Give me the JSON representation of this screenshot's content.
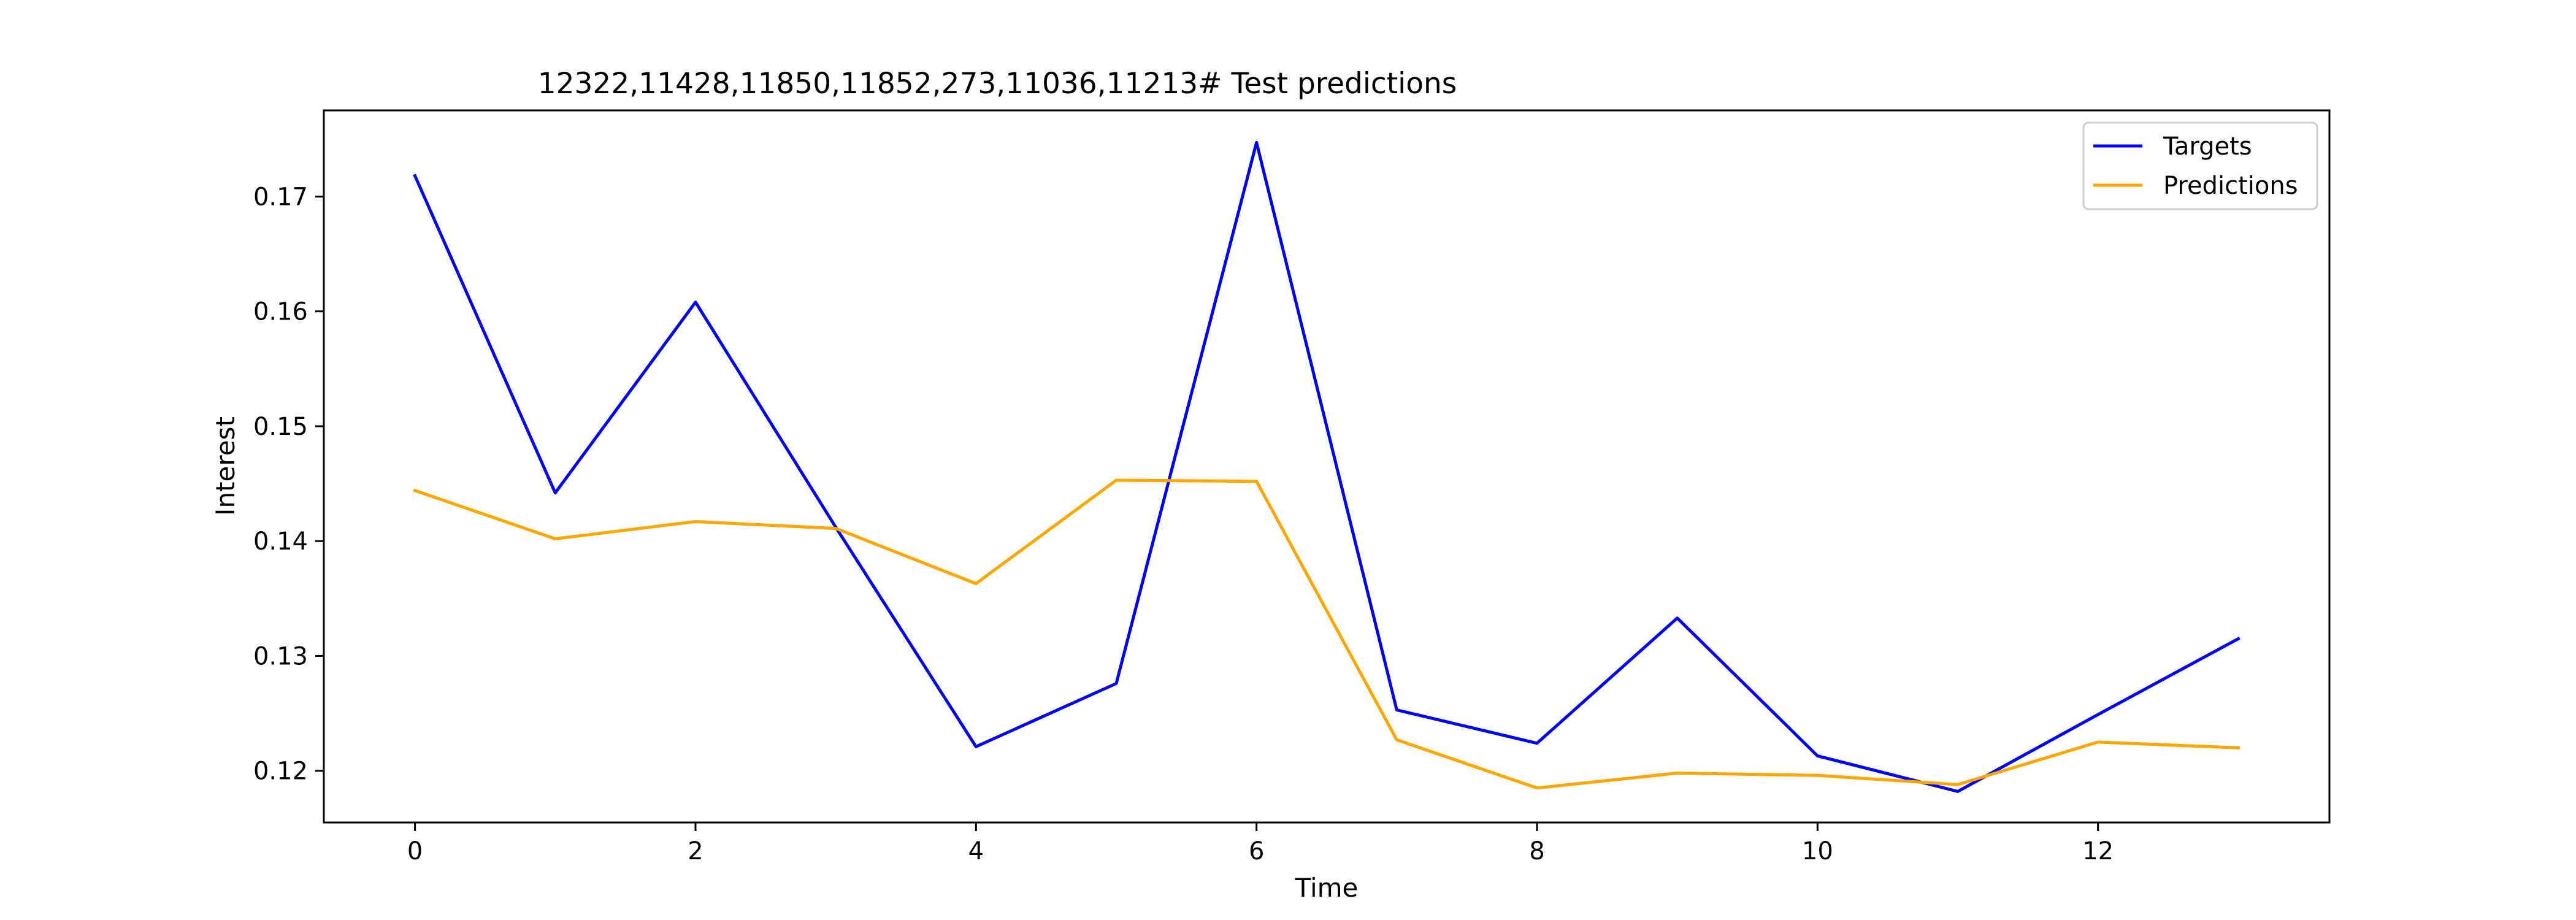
{
  "chart_data": {
    "type": "line",
    "title": "12322,11428,11850,11852,273,11036,11213# Test predictions",
    "xlabel": "Time",
    "ylabel": "Interest",
    "x": [
      0,
      1,
      2,
      3,
      4,
      5,
      6,
      7,
      8,
      9,
      10,
      11,
      12,
      13
    ],
    "xlim": [
      -0.65,
      13.65
    ],
    "ylim": [
      0.1155,
      0.1775
    ],
    "xticks": [
      0,
      2,
      4,
      6,
      8,
      10,
      12
    ],
    "xtick_labels": [
      "0",
      "2",
      "4",
      "6",
      "8",
      "10",
      "12"
    ],
    "yticks": [
      0.12,
      0.13,
      0.14,
      0.15,
      0.16,
      0.17
    ],
    "ytick_labels": [
      "0.12",
      "0.13",
      "0.14",
      "0.15",
      "0.16",
      "0.17"
    ],
    "grid": false,
    "legend_position": "top-right",
    "series": [
      {
        "name": "Targets",
        "color": "#0000ff",
        "values": [
          0.1718,
          0.1442,
          0.1608,
          0.1412,
          0.1221,
          0.1276,
          0.1747,
          0.1253,
          0.1224,
          0.1333,
          0.1213,
          0.1182,
          0.1249,
          0.1315
        ]
      },
      {
        "name": "Predictions",
        "color": "#ffa500",
        "values": [
          0.1444,
          0.1402,
          0.1417,
          0.1411,
          0.1363,
          0.1453,
          0.1452,
          0.1227,
          0.1185,
          0.1198,
          0.1196,
          0.1188,
          0.1225,
          0.122
        ]
      }
    ]
  }
}
